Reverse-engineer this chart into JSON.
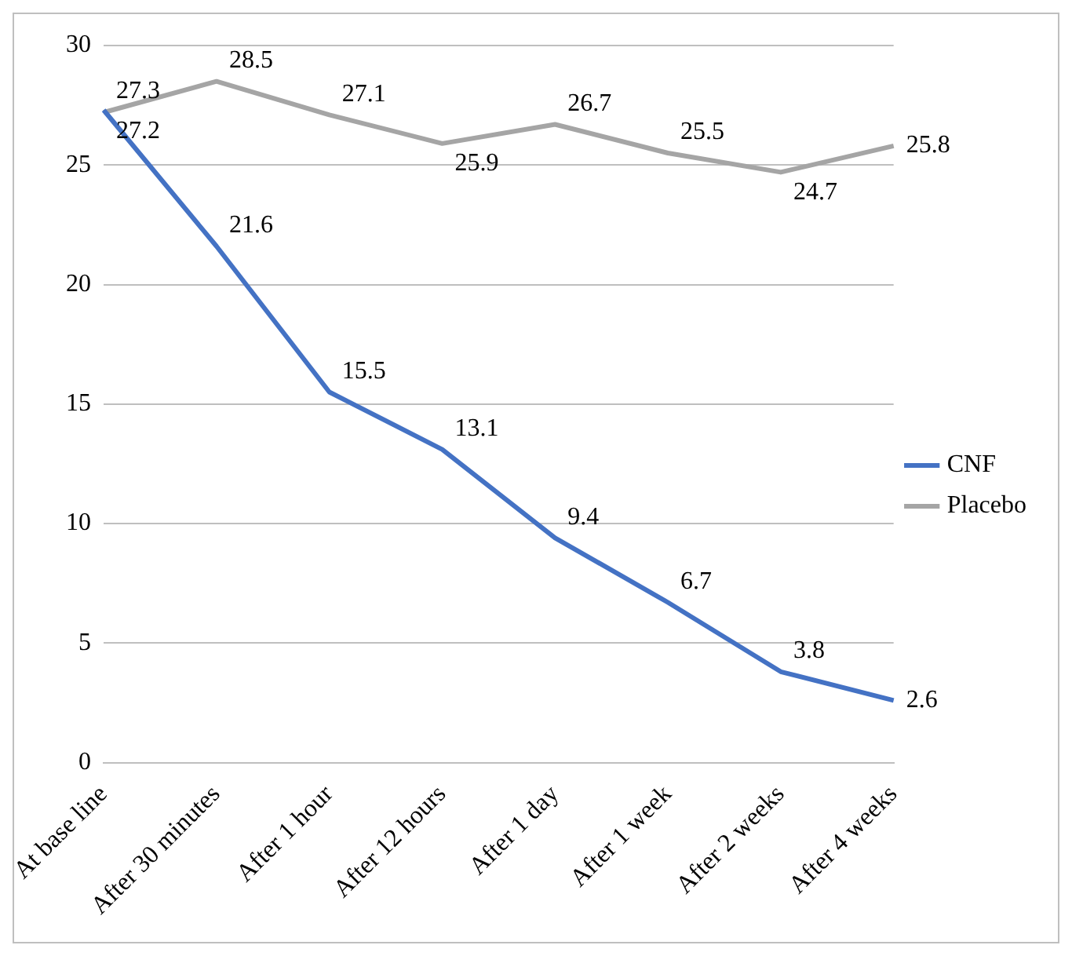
{
  "chart_data": {
    "type": "line",
    "categories": [
      "At base line",
      "After 30 minutes",
      "After 1 hour",
      "After 12 hours",
      "After 1 day",
      "After 1 week",
      "After 2 weeks",
      "After 4 weeks"
    ],
    "series": [
      {
        "name": "CNF",
        "color": "#4472c4",
        "values": [
          27.3,
          21.6,
          15.5,
          13.1,
          9.4,
          6.7,
          3.8,
          2.6
        ]
      },
      {
        "name": "Placebo",
        "color": "#a5a5a5",
        "values": [
          27.2,
          28.5,
          27.1,
          25.9,
          26.7,
          25.5,
          24.7,
          25.8
        ]
      }
    ],
    "ylim": [
      0,
      30
    ],
    "yticks": [
      0,
      5,
      10,
      15,
      20,
      25,
      30
    ],
    "grid": "y",
    "legend": "right",
    "data_labels": true,
    "marker": "none",
    "line_style": "solid"
  }
}
